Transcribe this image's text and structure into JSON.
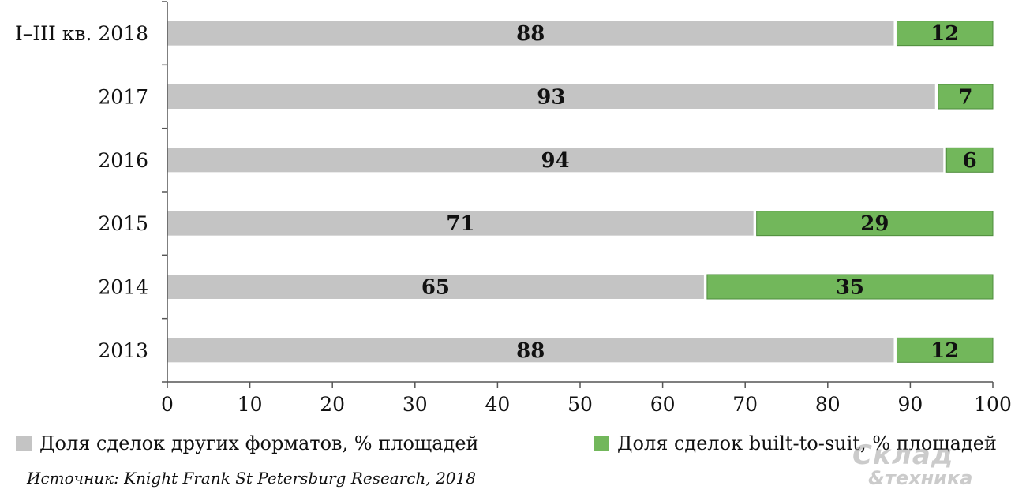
{
  "chart_data": {
    "type": "bar",
    "orientation": "horizontal",
    "stacked": true,
    "categories": [
      "I–III кв. 2018",
      "2017",
      "2016",
      "2015",
      "2014",
      "2013"
    ],
    "series": [
      {
        "name": "Доля сделок других форматов, % площадей",
        "values": [
          88,
          93,
          94,
          71,
          65,
          88
        ],
        "color": "#c4c4c4"
      },
      {
        "name": "Доля сделок built-to-suit, % площадей",
        "values": [
          12,
          7,
          6,
          29,
          35,
          12
        ],
        "color": "#72b75b"
      }
    ],
    "xlim": [
      0,
      100
    ],
    "xticks": [
      0,
      10,
      20,
      30,
      40,
      50,
      60,
      70,
      80,
      90,
      100
    ],
    "grid": false,
    "legend_position": "bottom"
  },
  "source": "Источник: Knight Frank St Petersburg Research, 2018",
  "watermark": {
    "line1": "Склад",
    "line2": "&техника"
  }
}
